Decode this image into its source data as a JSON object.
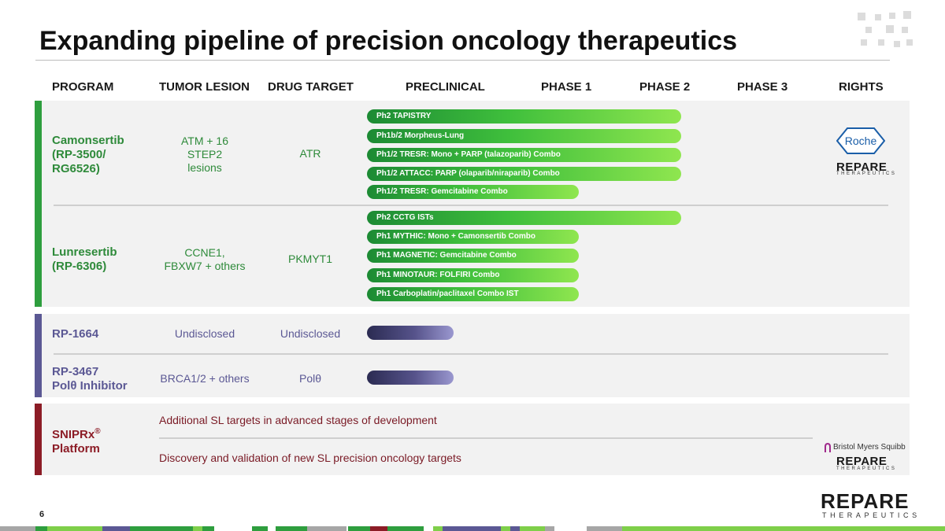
{
  "title": "Expanding pipeline of precision oncology therapeutics",
  "headers": [
    "PROGRAM",
    "TUMOR LESION",
    "DRUG TARGET",
    "PRECLINICAL",
    "PHASE 1",
    "PHASE 2",
    "PHASE 3",
    "RIGHTS"
  ],
  "colors": {
    "green": "#2e9e3e",
    "purple": "#5b5894",
    "maroon": "#8c1c26",
    "panel": "#f2f2f2"
  },
  "programs": {
    "camonsertib": {
      "name_l1": "Camonsertib",
      "name_l2": "(RP-3500/",
      "name_l3": "RG6526)",
      "lesion_l1": "ATM + 16",
      "lesion_l2": "STEP2",
      "lesion_l3": "lesions",
      "target": "ATR",
      "trials": [
        {
          "label": "Ph2 TAPISTRY",
          "stage": "Phase 2"
        },
        {
          "label": "Ph1b/2 Morpheus-Lung",
          "stage": "Phase 2"
        },
        {
          "label": "Ph1/2 TRESR: Mono + PARP (talazoparib) Combo",
          "stage": "Phase 2"
        },
        {
          "label": "Ph1/2 ATTACC: PARP (olaparib/niraparib) Combo",
          "stage": "Phase 2"
        },
        {
          "label": "Ph1/2 TRESR: Gemcitabine Combo",
          "stage": "Phase 1"
        }
      ],
      "rights_partner": "Roche",
      "rights_company": "REPARE",
      "rights_company_sub": "THERAPEUTICS"
    },
    "lunresertib": {
      "name_l1": "Lunresertib",
      "name_l2": "(RP-6306)",
      "lesion_l1": "CCNE1,",
      "lesion_l2": "FBXW7 + others",
      "target": "PKMYT1",
      "trials": [
        {
          "label": "Ph2 CCTG ISTs",
          "stage": "Phase 2"
        },
        {
          "label": "Ph1 MYTHIC: Mono + Camonsertib Combo",
          "stage": "Phase 1"
        },
        {
          "label": "Ph1 MAGNETIC: Gemcitabine Combo",
          "stage": "Phase 1"
        },
        {
          "label": "Ph1 MINOTAUR: FOLFIRI Combo",
          "stage": "Phase 1"
        },
        {
          "label": "Ph1 Carboplatin/paclitaxel Combo IST",
          "stage": "Phase 1"
        }
      ]
    },
    "rp1664": {
      "name": "RP-1664",
      "lesion": "Undisclosed",
      "target": "Undisclosed",
      "stage": "Preclinical"
    },
    "rp3467": {
      "name_l1": "RP-3467",
      "name_l2": "Polθ Inhibitor",
      "lesion": "BRCA1/2 + others",
      "target": "Polθ",
      "stage": "Preclinical"
    },
    "sniprx": {
      "name_l1": "SNIPRx",
      "name_sup": "®",
      "name_l2": "Platform",
      "line1": "Additional SL targets in advanced stages of development",
      "line2": "Discovery and validation of new SL precision oncology targets",
      "partner": "Bristol Myers Squibb",
      "company": "REPARE",
      "company_sub": "THERAPEUTICS"
    }
  },
  "footer": {
    "page": "6",
    "logo": "REPARE",
    "logo_sub": "THERAPEUTICS"
  }
}
